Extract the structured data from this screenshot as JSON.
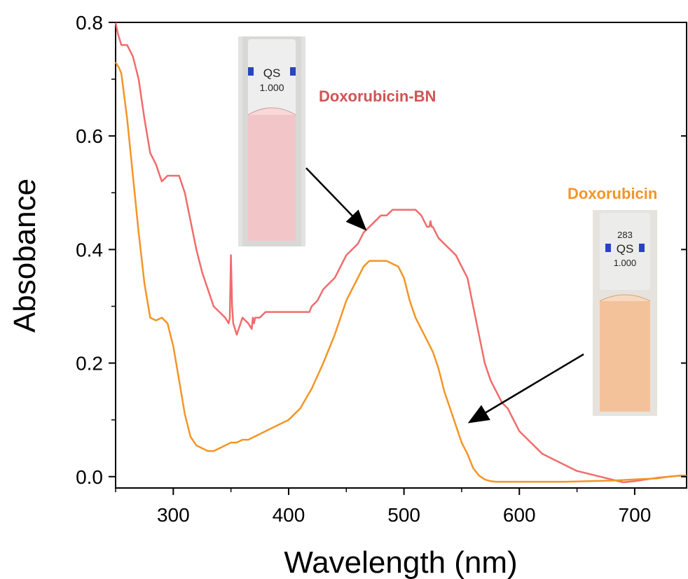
{
  "chart_data": {
    "type": "line",
    "title": "",
    "xlabel": "Wavelength (nm)",
    "ylabel": "Absobance",
    "xlim": [
      250,
      745
    ],
    "ylim": [
      -0.02,
      0.8
    ],
    "xticks": [
      300,
      400,
      500,
      600,
      700
    ],
    "yticks": [
      0.0,
      0.2,
      0.4,
      0.6,
      0.8
    ],
    "xtick_labels": [
      "300",
      "400",
      "500",
      "600",
      "700"
    ],
    "ytick_labels": [
      "0.0",
      "0.2",
      "0.4",
      "0.6",
      "0.8"
    ],
    "grid": false,
    "legend": "none",
    "series": [
      {
        "name": "Doxorubicin-BN",
        "color": "#f06c6c",
        "x": [
          250,
          252,
          255,
          260,
          265,
          270,
          275,
          280,
          285,
          290,
          295,
          300,
          305,
          310,
          315,
          320,
          325,
          330,
          335,
          340,
          345,
          348,
          349,
          350,
          351,
          352,
          355,
          360,
          365,
          368,
          369,
          370,
          371,
          372,
          375,
          380,
          385,
          390,
          395,
          400,
          405,
          410,
          415,
          418,
          420,
          425,
          430,
          435,
          440,
          445,
          450,
          455,
          460,
          465,
          470,
          475,
          480,
          485,
          490,
          495,
          500,
          505,
          510,
          515,
          520,
          522,
          523,
          524,
          525,
          530,
          535,
          540,
          545,
          550,
          555,
          560,
          565,
          570,
          575,
          580,
          585,
          590,
          595,
          600,
          610,
          620,
          630,
          640,
          650,
          660,
          670,
          680,
          690,
          700,
          710,
          720,
          730,
          740,
          745
        ],
        "y": [
          0.8,
          0.78,
          0.76,
          0.76,
          0.74,
          0.7,
          0.63,
          0.57,
          0.55,
          0.52,
          0.53,
          0.53,
          0.53,
          0.5,
          0.45,
          0.4,
          0.36,
          0.33,
          0.3,
          0.29,
          0.28,
          0.27,
          0.28,
          0.39,
          0.3,
          0.27,
          0.25,
          0.28,
          0.27,
          0.26,
          0.28,
          0.27,
          0.28,
          0.28,
          0.28,
          0.29,
          0.29,
          0.29,
          0.29,
          0.29,
          0.29,
          0.29,
          0.29,
          0.29,
          0.3,
          0.31,
          0.33,
          0.34,
          0.35,
          0.37,
          0.39,
          0.4,
          0.41,
          0.43,
          0.44,
          0.45,
          0.46,
          0.46,
          0.47,
          0.47,
          0.47,
          0.47,
          0.47,
          0.46,
          0.44,
          0.44,
          0.45,
          0.44,
          0.44,
          0.42,
          0.41,
          0.4,
          0.39,
          0.37,
          0.35,
          0.3,
          0.25,
          0.2,
          0.17,
          0.15,
          0.13,
          0.12,
          0.1,
          0.08,
          0.06,
          0.04,
          0.03,
          0.02,
          0.01,
          0.005,
          0.0,
          -0.005,
          -0.01,
          -0.008,
          -0.005,
          -0.002,
          0.0,
          0.002,
          0.0
        ]
      },
      {
        "name": "Doxorubicin",
        "color": "#f39526",
        "x": [
          250,
          253,
          255,
          260,
          265,
          270,
          275,
          280,
          285,
          290,
          295,
          300,
          305,
          310,
          315,
          320,
          325,
          330,
          335,
          340,
          345,
          350,
          355,
          360,
          365,
          370,
          375,
          380,
          390,
          400,
          410,
          420,
          430,
          440,
          450,
          455,
          460,
          465,
          470,
          475,
          480,
          485,
          490,
          495,
          500,
          505,
          510,
          515,
          520,
          525,
          530,
          535,
          540,
          545,
          550,
          555,
          560,
          565,
          570,
          575,
          580,
          600,
          620,
          640,
          660,
          680,
          700,
          720,
          730,
          740,
          745
        ],
        "y": [
          0.73,
          0.72,
          0.71,
          0.63,
          0.53,
          0.43,
          0.34,
          0.28,
          0.275,
          0.28,
          0.27,
          0.23,
          0.17,
          0.11,
          0.07,
          0.055,
          0.05,
          0.045,
          0.045,
          0.05,
          0.055,
          0.06,
          0.06,
          0.065,
          0.065,
          0.07,
          0.075,
          0.08,
          0.09,
          0.1,
          0.12,
          0.155,
          0.2,
          0.25,
          0.31,
          0.33,
          0.35,
          0.37,
          0.38,
          0.38,
          0.38,
          0.38,
          0.375,
          0.37,
          0.35,
          0.31,
          0.28,
          0.26,
          0.24,
          0.22,
          0.19,
          0.15,
          0.12,
          0.09,
          0.06,
          0.04,
          0.015,
          0.002,
          -0.005,
          -0.008,
          -0.009,
          -0.009,
          -0.009,
          -0.009,
          -0.008,
          -0.007,
          -0.005,
          -0.003,
          0.0,
          0.002,
          0.002
        ]
      }
    ],
    "annotations": [
      {
        "text": "Doxorubicin-BN",
        "color": "#d15454"
      },
      {
        "text": "Doxorubicin",
        "color": "#f39526"
      }
    ]
  },
  "insets": [
    {
      "name": "cuvette-doxorubicin-bn",
      "label_lines": [
        "QS",
        "1.000"
      ],
      "liquid_color": "#f8c5c6"
    },
    {
      "name": "cuvette-doxorubicin",
      "label_lines": [
        "283",
        "QS",
        "1.000"
      ],
      "liquid_color": "#f6c39a"
    }
  ]
}
